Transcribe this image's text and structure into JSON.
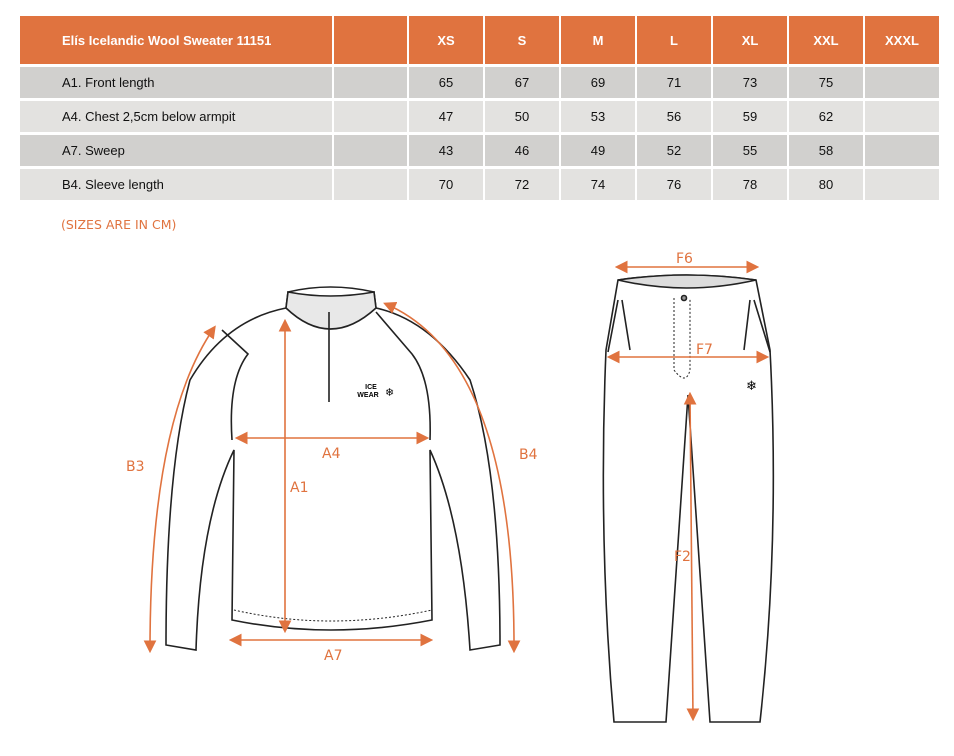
{
  "table": {
    "title": "Elís Icelandic Wool Sweater 11151",
    "sizes": [
      "XS",
      "S",
      "M",
      "L",
      "XL",
      "XXL",
      "XXXL"
    ],
    "rows": [
      {
        "label": "A1. Front length",
        "values": [
          "65",
          "67",
          "69",
          "71",
          "73",
          "75",
          ""
        ]
      },
      {
        "label": "A4. Chest 2,5cm below armpit",
        "values": [
          "47",
          "50",
          "53",
          "56",
          "59",
          "62",
          ""
        ]
      },
      {
        "label": "A7. Sweep",
        "values": [
          "43",
          "46",
          "49",
          "52",
          "55",
          "58",
          ""
        ]
      },
      {
        "label": "B4. Sleeve length",
        "values": [
          "70",
          "72",
          "74",
          "76",
          "78",
          "80",
          ""
        ]
      }
    ]
  },
  "note": "(SIZES ARE IN CM)",
  "diagram": {
    "accent": "#e0733f",
    "sweater_labels": {
      "a1": "A1",
      "a4": "A4",
      "a7": "A7",
      "b3": "B3",
      "b4": "B4"
    },
    "pants_labels": {
      "f6": "F6",
      "f7": "F7",
      "f2": "F2"
    },
    "logo_text": "ICE WEAR"
  }
}
